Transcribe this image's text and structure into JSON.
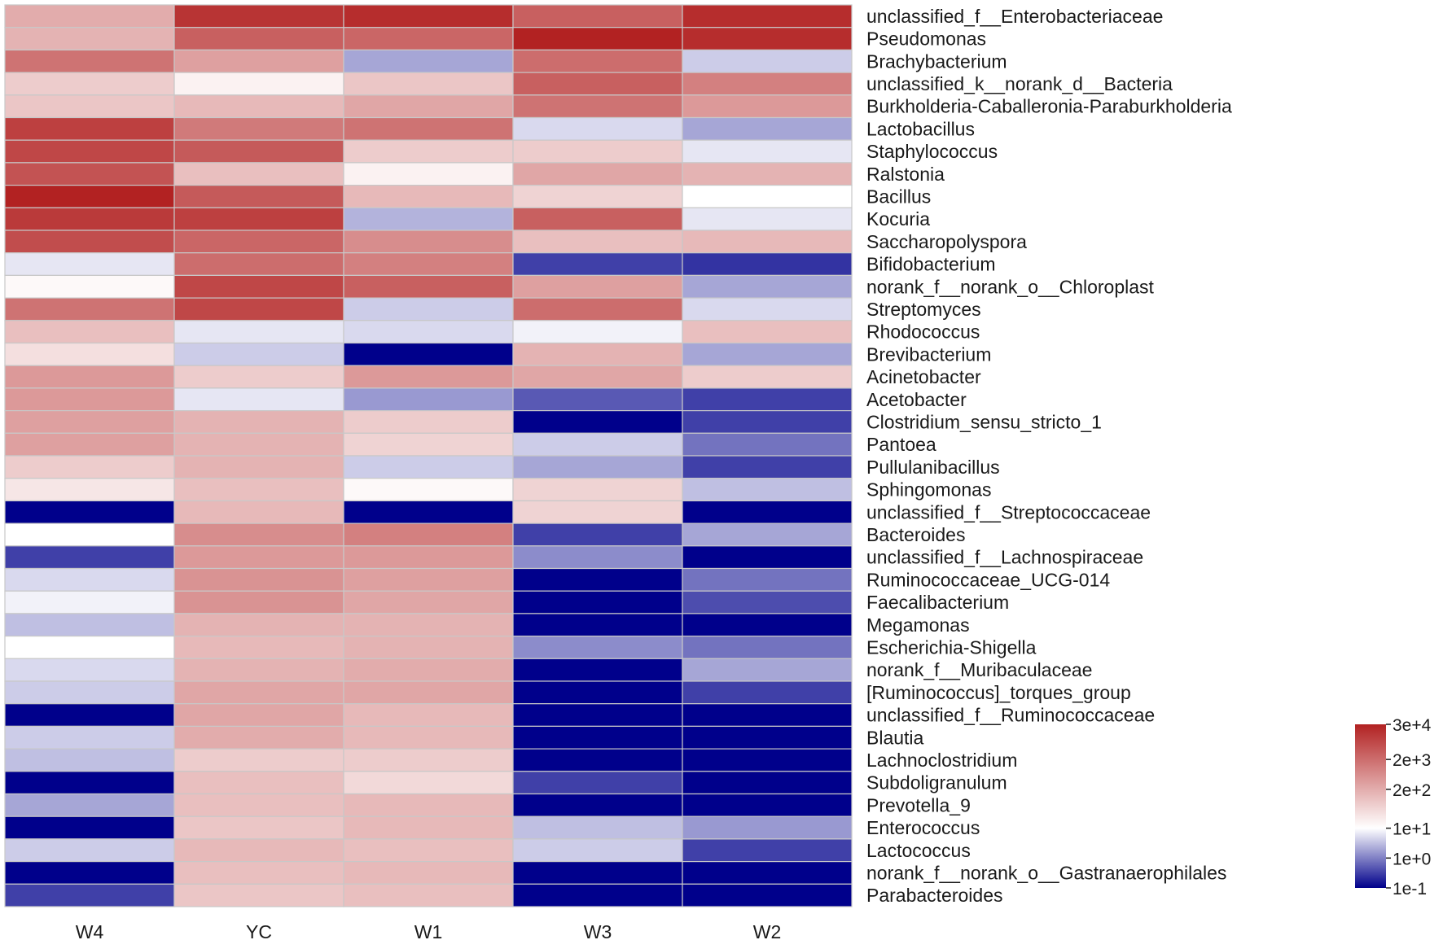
{
  "chart_data": {
    "type": "heatmap",
    "title": "",
    "xlabel": "",
    "ylabel": "",
    "columns": [
      "W4",
      "YC",
      "W1",
      "W3",
      "W2"
    ],
    "rows": [
      "unclassified_f__Enterobacteriaceae",
      "Pseudomonas",
      "Brachybacterium",
      "unclassified_k__norank_d__Bacteria",
      "Burkholderia-Caballeronia-Paraburkholderia",
      "Lactobacillus",
      "Staphylococcus",
      "Ralstonia",
      "Bacillus",
      "Kocuria",
      "Saccharopolyspora",
      "Bifidobacterium",
      "norank_f__norank_o__Chloroplast",
      "Streptomyces",
      "Rhodococcus",
      "Brevibacterium",
      "Acinetobacter",
      "Acetobacter",
      "Clostridium_sensu_stricto_1",
      "Pantoea",
      "Pullulanibacillus",
      "Sphingomonas",
      "unclassified_f__Streptococcaceae",
      "Bacteroides",
      "unclassified_f__Lachnospiraceae",
      "Ruminococcaceae_UCG-014",
      "Faecalibacterium",
      "Megamonas",
      "Escherichia-Shigella",
      "norank_f__Muribaculaceae",
      "[Ruminococcus]_torques_group",
      "unclassified_f__Ruminococcaceae",
      "Blautia",
      "Lachnoclostridium",
      "Subdoligranulum",
      "Prevotella_9",
      "Enterococcus",
      "Lactococcus",
      "norank_f__norank_o__Gastranaerophilales",
      "Parabacteroides"
    ],
    "values_log10": [
      [
        2.3,
        4.2,
        4.3,
        3.5,
        4.3
      ],
      [
        2.2,
        3.5,
        3.4,
        4.5,
        4.3
      ],
      [
        3.2,
        2.5,
        0.3,
        3.3,
        0.6
      ],
      [
        1.8,
        1.2,
        1.9,
        3.5,
        3.0
      ],
      [
        1.9,
        2.1,
        2.4,
        3.2,
        2.6
      ],
      [
        4.0,
        3.1,
        3.2,
        0.7,
        0.3
      ],
      [
        3.9,
        3.6,
        1.8,
        1.8,
        0.8
      ],
      [
        3.7,
        2.0,
        1.2,
        2.4,
        2.2
      ],
      [
        4.6,
        3.6,
        2.1,
        1.7,
        1.0
      ],
      [
        4.1,
        4.0,
        0.4,
        3.5,
        0.8
      ],
      [
        3.8,
        3.4,
        2.8,
        2.0,
        2.1
      ],
      [
        0.8,
        3.3,
        3.0,
        -0.5,
        -0.6
      ],
      [
        1.1,
        3.9,
        3.5,
        2.5,
        0.3
      ],
      [
        3.2,
        3.9,
        0.6,
        3.3,
        0.7
      ],
      [
        2.0,
        0.8,
        0.7,
        0.9,
        2.0
      ],
      [
        1.5,
        0.6,
        -1.0,
        2.2,
        0.3
      ],
      [
        2.6,
        1.8,
        2.6,
        2.4,
        1.8
      ],
      [
        2.6,
        0.8,
        0.2,
        -0.3,
        -0.5
      ],
      [
        2.5,
        2.2,
        1.8,
        -1.0,
        -0.5
      ],
      [
        2.5,
        2.2,
        1.7,
        0.6,
        -0.1
      ],
      [
        1.8,
        2.2,
        0.6,
        0.3,
        -0.5
      ],
      [
        1.4,
        2.0,
        1.1,
        1.7,
        0.5
      ],
      [
        -1.0,
        2.1,
        -1.0,
        1.7,
        -1.0
      ],
      [
        1.0,
        2.8,
        3.0,
        -0.5,
        0.3
      ],
      [
        -0.5,
        2.6,
        2.6,
        0.1,
        -1.0
      ],
      [
        0.7,
        2.7,
        2.5,
        -1.0,
        -0.1
      ],
      [
        0.9,
        2.7,
        2.4,
        -1.0,
        -0.4
      ],
      [
        0.5,
        2.2,
        2.2,
        -1.0,
        -1.0
      ],
      [
        1.0,
        2.1,
        2.2,
        0.1,
        -0.1
      ],
      [
        0.7,
        2.2,
        2.3,
        -1.0,
        0.3
      ],
      [
        0.6,
        2.4,
        2.4,
        -1.0,
        -0.5
      ],
      [
        -1.0,
        2.4,
        2.1,
        -1.0,
        -1.0
      ],
      [
        0.6,
        2.3,
        2.1,
        -1.0,
        -1.0
      ],
      [
        0.5,
        1.8,
        1.8,
        -1.0,
        -1.0
      ],
      [
        -1.0,
        2.0,
        1.6,
        -0.5,
        -1.0
      ],
      [
        0.3,
        2.0,
        2.1,
        -1.0,
        -1.0
      ],
      [
        -1.0,
        1.9,
        2.1,
        0.5,
        0.2
      ],
      [
        0.6,
        2.1,
        2.0,
        0.6,
        -0.5
      ],
      [
        -1.0,
        2.0,
        2.1,
        -1.0,
        -1.0
      ],
      [
        -0.5,
        1.9,
        2.0,
        -1.0,
        -1.0
      ]
    ],
    "color_scale": {
      "type": "log10",
      "range": [
        -1,
        4.477
      ],
      "colors": [
        "#00008b",
        "#ffffff",
        "#b22222"
      ],
      "midpoint": 1
    },
    "legend": {
      "position": "bottom-right",
      "ticks": [
        {
          "label": "3e+4",
          "value": 4.477
        },
        {
          "label": "2e+3",
          "value": 3.301
        },
        {
          "label": "2e+2",
          "value": 2.301
        },
        {
          "label": "1e+1",
          "value": 1.0
        },
        {
          "label": "1e+0",
          "value": 0.0
        },
        {
          "label": "1e-1",
          "value": -1.0
        }
      ]
    }
  }
}
